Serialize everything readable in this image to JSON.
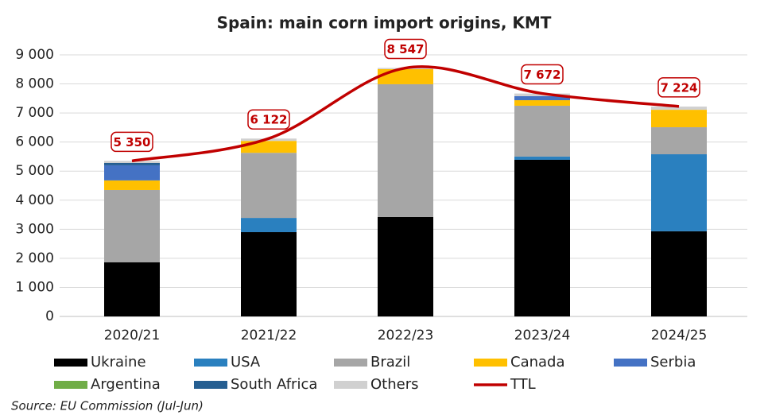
{
  "chart_data": {
    "type": "bar",
    "stacked": true,
    "title": "Spain: main corn import origins, KMT",
    "note": "Source: EU Commission (Jul-Jun)",
    "categories": [
      "2020/21",
      "2021/22",
      "2022/23",
      "2023/24",
      "2024/25"
    ],
    "series": [
      {
        "name": "Ukraine",
        "color": "#000000",
        "values": [
          1860,
          2900,
          3420,
          5390,
          2930
        ]
      },
      {
        "name": "USA",
        "color": "#2a80bf",
        "values": [
          0,
          490,
          0,
          110,
          2650
        ]
      },
      {
        "name": "Brazil",
        "color": "#a6a6a6",
        "values": [
          2490,
          2240,
          4570,
          1750,
          930
        ]
      },
      {
        "name": "Canada",
        "color": "#ffc000",
        "values": [
          330,
          410,
          520,
          190,
          600
        ]
      },
      {
        "name": "Serbia",
        "color": "#4472c4",
        "values": [
          520,
          0,
          0,
          140,
          0
        ]
      },
      {
        "name": "Argentina",
        "color": "#70ad47",
        "values": [
          0,
          0,
          0,
          0,
          0
        ]
      },
      {
        "name": "South Africa",
        "color": "#255e91",
        "values": [
          80,
          0,
          0,
          0,
          0
        ]
      },
      {
        "name": "Others",
        "color": "#d0d0d0",
        "values": [
          70,
          80,
          40,
          90,
          110
        ]
      },
      {
        "name": "TTL",
        "color": "#c00000",
        "type": "line",
        "values": [
          5350,
          6122,
          8547,
          7672,
          7224
        ],
        "value_labels": [
          "5 350",
          "6 122",
          "8 547",
          "7 672",
          "7 224"
        ]
      }
    ],
    "ylim": [
      0,
      9000
    ],
    "yticks": [
      0,
      {
        "value": 1000,
        "label": "1 000"
      },
      {
        "value": 2000,
        "label": "2 000"
      },
      {
        "value": 3000,
        "label": "3 000"
      },
      {
        "value": 4000,
        "label": "4 000"
      },
      {
        "value": 5000,
        "label": "5 000"
      },
      {
        "value": 6000,
        "label": "6 000"
      },
      {
        "value": 7000,
        "label": "7 000"
      },
      {
        "value": 8000,
        "label": "8 000"
      },
      {
        "value": 9000,
        "label": "9 000"
      }
    ],
    "grid": true
  }
}
